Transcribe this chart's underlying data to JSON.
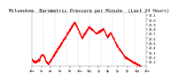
{
  "title": "Milwaukee  Barometric Pressure per Minute  (Last 24 Hours)",
  "background_color": "#ffffff",
  "plot_color": "#ff0000",
  "grid_color": "#c0c0c0",
  "ylim": [
    29.0,
    30.15
  ],
  "yticks": [
    29.1,
    29.2,
    29.3,
    29.4,
    29.5,
    29.6,
    29.7,
    29.8,
    29.9,
    30.0,
    30.1
  ],
  "title_fontsize": 3.8,
  "tick_fontsize": 2.6,
  "line_width": 0.55,
  "marker_size": 0.8,
  "num_grid_lines": 9,
  "x_tick_hours": [
    12,
    2,
    4,
    6,
    8,
    10,
    12,
    2,
    4,
    6,
    8,
    10,
    12
  ],
  "x_tick_suffix": [
    "a",
    "a",
    "a",
    "a",
    "a",
    "a",
    "p",
    "p",
    "p",
    "p",
    "p",
    "p",
    "a"
  ]
}
